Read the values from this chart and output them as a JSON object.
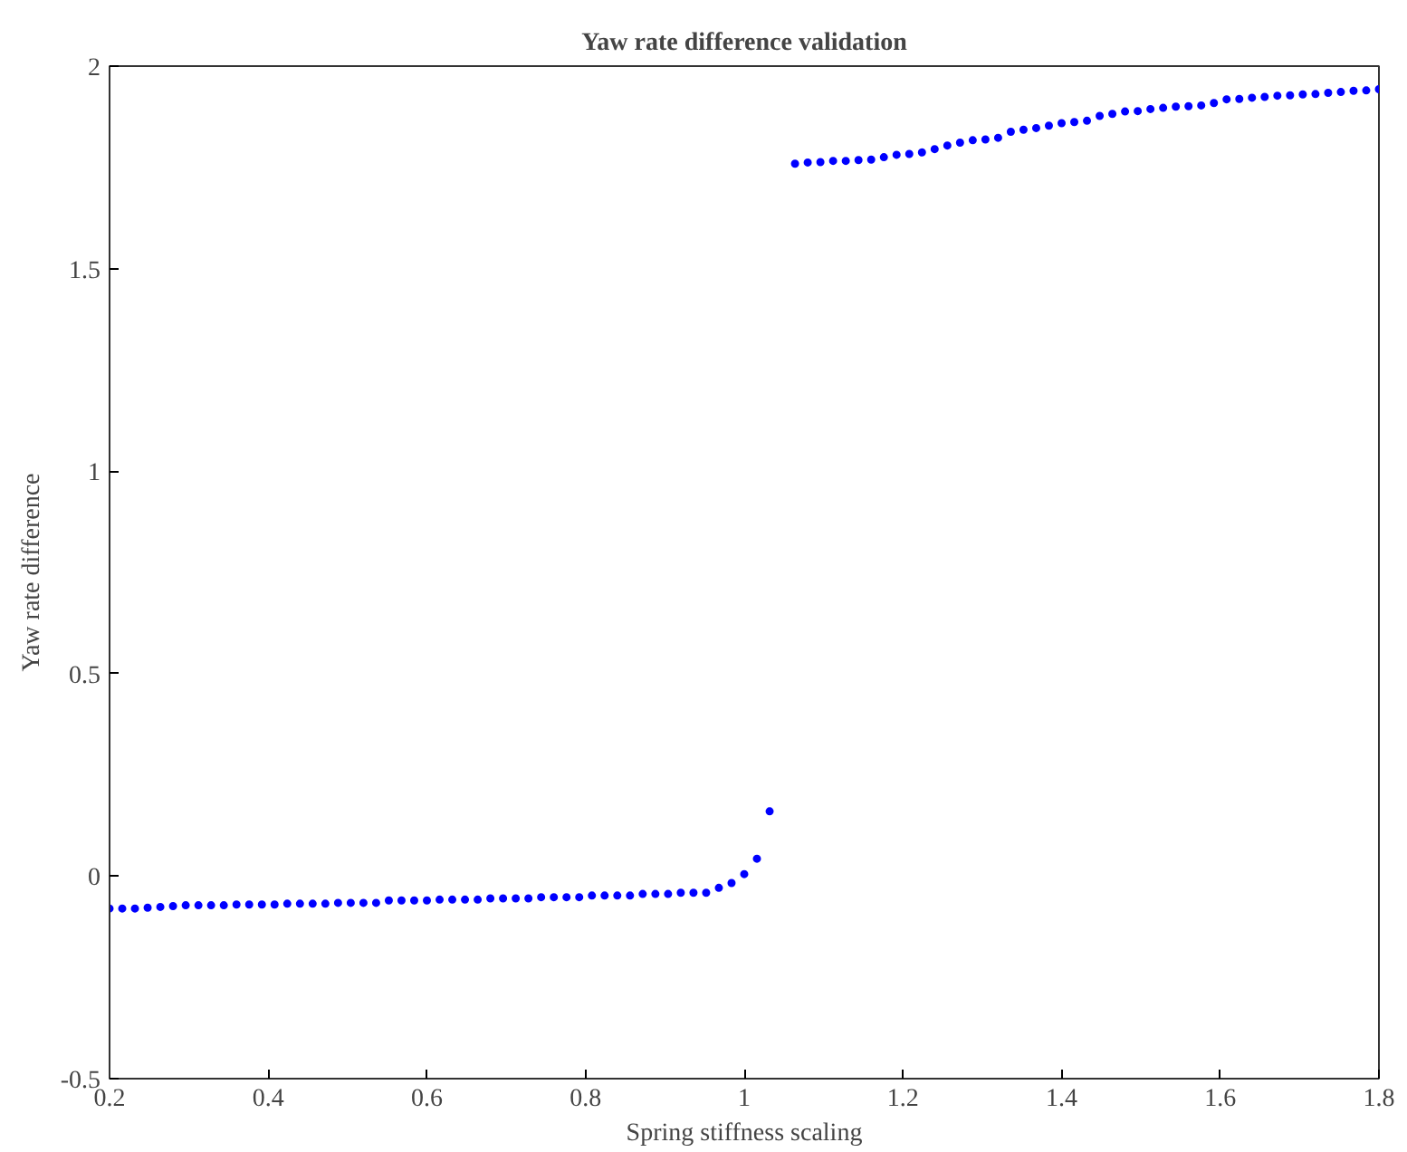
{
  "chart_data": {
    "type": "scatter",
    "title": "Yaw rate difference validation",
    "xlabel": "Spring stiffness scaling",
    "ylabel": "Yaw rate difference",
    "xlim": [
      0.2,
      1.8
    ],
    "ylim": [
      -0.5,
      2
    ],
    "xticks": [
      0.2,
      0.4,
      0.6,
      0.8,
      1,
      1.2,
      1.4,
      1.6,
      1.8
    ],
    "yticks": [
      -0.5,
      0,
      0.5,
      1,
      1.5,
      2
    ],
    "grid": false,
    "marker": "circle",
    "series": [
      {
        "color": "#0000ff",
        "x": [
          0.2,
          0.216,
          0.232,
          0.248,
          0.264,
          0.28,
          0.296,
          0.312,
          0.328,
          0.344,
          0.36,
          0.376,
          0.392,
          0.408,
          0.424,
          0.44,
          0.456,
          0.472,
          0.488,
          0.504,
          0.52,
          0.536,
          0.552,
          0.568,
          0.584,
          0.6,
          0.616,
          0.632,
          0.648,
          0.664,
          0.68,
          0.696,
          0.712,
          0.728,
          0.744,
          0.76,
          0.776,
          0.792,
          0.808,
          0.824,
          0.84,
          0.856,
          0.872,
          0.888,
          0.904,
          0.92,
          0.936,
          0.952,
          0.968,
          0.984,
          1.0,
          1.016,
          1.032,
          1.064,
          1.08,
          1.096,
          1.112,
          1.128,
          1.144,
          1.16,
          1.176,
          1.192,
          1.208,
          1.224,
          1.24,
          1.256,
          1.272,
          1.288,
          1.304,
          1.32,
          1.336,
          1.352,
          1.368,
          1.384,
          1.4,
          1.416,
          1.432,
          1.448,
          1.464,
          1.48,
          1.496,
          1.512,
          1.528,
          1.544,
          1.56,
          1.576,
          1.592,
          1.608,
          1.624,
          1.64,
          1.656,
          1.672,
          1.688,
          1.704,
          1.72,
          1.736,
          1.752,
          1.768,
          1.784,
          1.8
        ],
        "values": [
          -0.08,
          -0.08,
          -0.08,
          -0.078,
          -0.076,
          -0.074,
          -0.072,
          -0.072,
          -0.072,
          -0.072,
          -0.07,
          -0.07,
          -0.07,
          -0.07,
          -0.068,
          -0.068,
          -0.068,
          -0.068,
          -0.066,
          -0.066,
          -0.066,
          -0.066,
          -0.06,
          -0.06,
          -0.06,
          -0.06,
          -0.058,
          -0.058,
          -0.058,
          -0.058,
          -0.055,
          -0.055,
          -0.055,
          -0.055,
          -0.052,
          -0.052,
          -0.052,
          -0.052,
          -0.048,
          -0.048,
          -0.048,
          -0.048,
          -0.044,
          -0.044,
          -0.044,
          -0.041,
          -0.041,
          -0.041,
          -0.029,
          -0.017,
          0.005,
          0.043,
          0.16,
          1.759,
          1.762,
          1.763,
          1.766,
          1.766,
          1.768,
          1.769,
          1.775,
          1.781,
          1.783,
          1.787,
          1.795,
          1.804,
          1.811,
          1.817,
          1.819,
          1.823,
          1.838,
          1.843,
          1.847,
          1.853,
          1.859,
          1.862,
          1.865,
          1.877,
          1.882,
          1.888,
          1.889,
          1.894,
          1.897,
          1.9,
          1.901,
          1.903,
          1.909,
          1.918,
          1.919,
          1.922,
          1.924,
          1.927,
          1.928,
          1.93,
          1.931,
          1.934,
          1.936,
          1.939,
          1.94,
          1.943
        ]
      }
    ]
  }
}
